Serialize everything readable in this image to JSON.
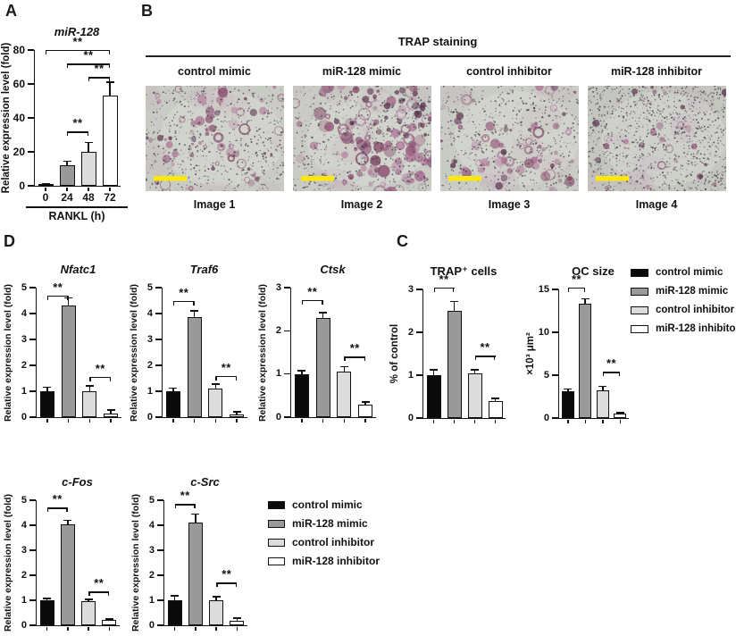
{
  "panels": {
    "a": "A",
    "b": "B",
    "c": "C",
    "d": "D"
  },
  "colors": {
    "bar_black": "#0a0a0a",
    "bar_darkgray": "#999999",
    "bar_lightgray": "#dcdcdc",
    "bar_white": "#ffffff",
    "axis": "#161616",
    "scale_bar_yellow": "#ffe70a",
    "stain_purple": "#8a4a6e",
    "stain_background": "#c9ccc5"
  },
  "groups": [
    "control mimic",
    "miR-128 mimic",
    "control inhibitor",
    "miR-128 inhibitor"
  ],
  "legend": {
    "entries": [
      {
        "label": "control mimic",
        "fill": "#0a0a0a"
      },
      {
        "label": "miR-128 mimic",
        "fill": "#999999"
      },
      {
        "label": "control inhibitor",
        "fill": "#dcdcdc"
      },
      {
        "label": "miR-128 inhibitor",
        "fill": "#ffffff"
      }
    ]
  },
  "panel_b": {
    "title": "TRAP staining",
    "columns": [
      "control mimic",
      "miR-128 mimic",
      "control inhibitor",
      "miR-128 inhibitor"
    ],
    "images": [
      {
        "label": "Image 1",
        "group": "control mimic",
        "stain_level": "moderate"
      },
      {
        "label": "Image 2",
        "group": "miR-128 mimic",
        "stain_level": "dense"
      },
      {
        "label": "Image 3",
        "group": "control inhibitor",
        "stain_level": "moderate"
      },
      {
        "label": "Image 4",
        "group": "miR-128 inhibitor",
        "stain_level": "sparse"
      }
    ],
    "scale_bar_color": "#ffe70a"
  },
  "chart_data": [
    {
      "id": "mir128",
      "type": "bar",
      "title": "miR-128",
      "ylabel": "Relative expression level (fold)",
      "xlabel": "RANKL (h)",
      "ylim": [
        0,
        80
      ],
      "yticks": [
        0,
        20,
        40,
        60,
        80
      ],
      "categories": [
        "0",
        "24",
        "48",
        "72"
      ],
      "categories_visible": true,
      "values": [
        0.8,
        12,
        20,
        53
      ],
      "errors": [
        0.5,
        2.5,
        5.5,
        8
      ],
      "bar_colors": [
        "#0a0a0a",
        "#999999",
        "#dcdcdc",
        "#ffffff"
      ],
      "sig": [
        {
          "from": 0,
          "to": 3,
          "y": 80,
          "label": "**"
        },
        {
          "from": 1,
          "to": 3,
          "y": 72,
          "label": "**"
        },
        {
          "from": 2,
          "to": 3,
          "y": 64,
          "label": "**"
        },
        {
          "from": 1,
          "to": 2,
          "y": 32,
          "label": "**"
        }
      ]
    },
    {
      "id": "trap_cells",
      "type": "bar",
      "title": "TRAP⁺ cells",
      "ylabel": "% of control",
      "ylim": [
        0,
        3
      ],
      "yticks": [
        0,
        1,
        2,
        3
      ],
      "categories": [
        "control mimic",
        "miR-128 mimic",
        "control inhibitor",
        "miR-128 inhibitor"
      ],
      "categories_visible": false,
      "values": [
        1.0,
        2.5,
        1.05,
        0.4
      ],
      "errors": [
        0.12,
        0.22,
        0.08,
        0.06
      ],
      "bar_colors": [
        "#0a0a0a",
        "#999999",
        "#dcdcdc",
        "#ffffff"
      ],
      "sig": [
        {
          "from": 0,
          "to": 1,
          "y": 3.05,
          "label": "**"
        },
        {
          "from": 2,
          "to": 3,
          "y": 1.45,
          "label": "**"
        }
      ]
    },
    {
      "id": "oc_size",
      "type": "bar",
      "title": "OC size",
      "ylabel": "×10³ μm²",
      "ylim": [
        0,
        15
      ],
      "yticks": [
        0,
        5,
        10,
        15
      ],
      "categories": [
        "control mimic",
        "miR-128 mimic",
        "control inhibitor",
        "miR-128 inhibitor"
      ],
      "categories_visible": false,
      "values": [
        3.1,
        13.3,
        3.2,
        0.5
      ],
      "errors": [
        0.3,
        0.6,
        0.5,
        0.15
      ],
      "bar_colors": [
        "#0a0a0a",
        "#999999",
        "#dcdcdc",
        "#ffffff"
      ],
      "sig": [
        {
          "from": 0,
          "to": 1,
          "y": 15.2,
          "label": "**"
        },
        {
          "from": 2,
          "to": 3,
          "y": 5.4,
          "label": "**"
        }
      ]
    },
    {
      "id": "nfatc1",
      "type": "bar",
      "title": "Nfatc1",
      "ylabel": "Relative expression level (fold)",
      "ylim": [
        0,
        5
      ],
      "yticks": [
        0,
        1,
        2,
        3,
        4,
        5
      ],
      "categories": [
        "control mimic",
        "miR-128 mimic",
        "control inhibitor",
        "miR-128 inhibitor"
      ],
      "categories_visible": false,
      "values": [
        1.0,
        4.3,
        1.0,
        0.15
      ],
      "errors": [
        0.15,
        0.3,
        0.2,
        0.12
      ],
      "bar_colors": [
        "#0a0a0a",
        "#999999",
        "#dcdcdc",
        "#ffffff"
      ],
      "sig": [
        {
          "from": 0,
          "to": 1,
          "y": 4.7,
          "label": "**"
        },
        {
          "from": 2,
          "to": 3,
          "y": 1.55,
          "label": "**"
        }
      ]
    },
    {
      "id": "traf6",
      "type": "bar",
      "title": "Traf6",
      "ylabel": "Relative expression level (fold)",
      "ylim": [
        0,
        5
      ],
      "yticks": [
        0,
        1,
        2,
        3,
        4,
        5
      ],
      "categories": [
        "control mimic",
        "miR-128 mimic",
        "control inhibitor",
        "miR-128 inhibitor"
      ],
      "categories_visible": false,
      "values": [
        1.0,
        3.85,
        1.1,
        0.12
      ],
      "errors": [
        0.12,
        0.25,
        0.18,
        0.08
      ],
      "bar_colors": [
        "#0a0a0a",
        "#999999",
        "#dcdcdc",
        "#ffffff"
      ],
      "sig": [
        {
          "from": 0,
          "to": 1,
          "y": 4.5,
          "label": "**"
        },
        {
          "from": 2,
          "to": 3,
          "y": 1.6,
          "label": "**"
        }
      ]
    },
    {
      "id": "ctsk",
      "type": "bar",
      "title": "Ctsk",
      "ylabel": "Relative expression level (fold)",
      "ylim": [
        0,
        3
      ],
      "yticks": [
        0,
        1,
        2,
        3
      ],
      "categories": [
        "control mimic",
        "miR-128 mimic",
        "control inhibitor",
        "miR-128 inhibitor"
      ],
      "categories_visible": false,
      "values": [
        1.0,
        2.3,
        1.05,
        0.28
      ],
      "errors": [
        0.08,
        0.12,
        0.12,
        0.07
      ],
      "bar_colors": [
        "#0a0a0a",
        "#999999",
        "#dcdcdc",
        "#ffffff"
      ],
      "sig": [
        {
          "from": 0,
          "to": 1,
          "y": 2.72,
          "label": "**"
        },
        {
          "from": 2,
          "to": 3,
          "y": 1.4,
          "label": "**"
        }
      ]
    },
    {
      "id": "cfos",
      "type": "bar",
      "title": "c-Fos",
      "ylabel": "Relative expression level (fold)",
      "ylim": [
        0,
        5
      ],
      "yticks": [
        0,
        1,
        2,
        3,
        4,
        5
      ],
      "categories": [
        "control mimic",
        "miR-128 mimic",
        "control inhibitor",
        "miR-128 inhibitor"
      ],
      "categories_visible": false,
      "values": [
        1.0,
        4.05,
        0.98,
        0.2
      ],
      "errors": [
        0.08,
        0.15,
        0.05,
        0.05
      ],
      "bar_colors": [
        "#0a0a0a",
        "#999999",
        "#dcdcdc",
        "#ffffff"
      ],
      "sig": [
        {
          "from": 0,
          "to": 1,
          "y": 4.7,
          "label": "**"
        },
        {
          "from": 2,
          "to": 3,
          "y": 1.35,
          "label": "**"
        }
      ]
    },
    {
      "id": "csrc",
      "type": "bar",
      "title": "c-Src",
      "ylabel": "Relative expression level (fold)",
      "ylim": [
        0,
        5
      ],
      "yticks": [
        0,
        1,
        2,
        3,
        4,
        5
      ],
      "categories": [
        "control mimic",
        "miR-128 mimic",
        "control inhibitor",
        "miR-128 inhibitor"
      ],
      "categories_visible": false,
      "values": [
        1.0,
        4.1,
        1.0,
        0.18
      ],
      "errors": [
        0.18,
        0.35,
        0.15,
        0.1
      ],
      "bar_colors": [
        "#0a0a0a",
        "#999999",
        "#dcdcdc",
        "#ffffff"
      ],
      "sig": [
        {
          "from": 0,
          "to": 1,
          "y": 4.85,
          "label": "**"
        },
        {
          "from": 2,
          "to": 3,
          "y": 1.7,
          "label": "**"
        }
      ]
    }
  ]
}
